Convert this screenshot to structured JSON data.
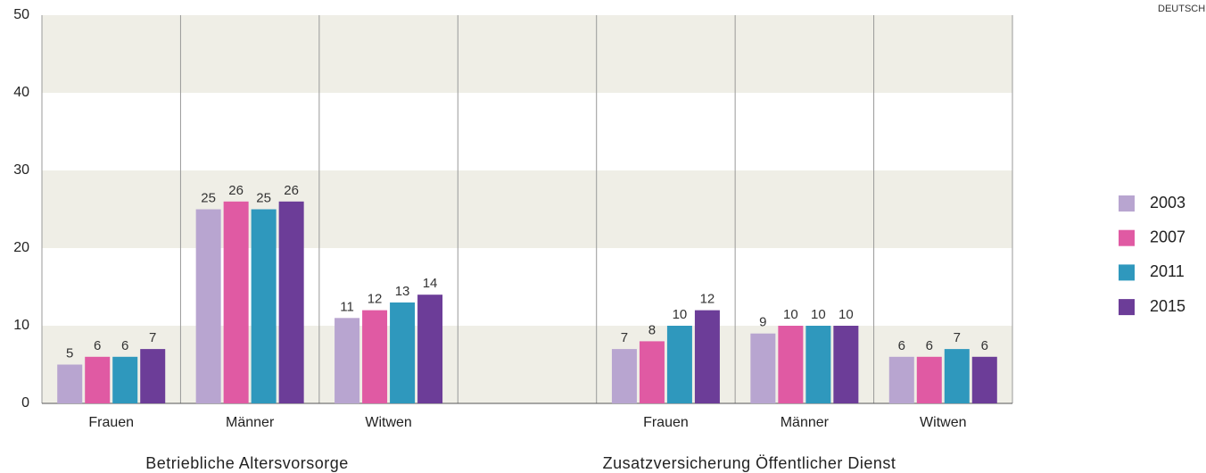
{
  "chart_data": {
    "type": "bar",
    "corner_label": "DEUTSCHLAND",
    "categories": [
      "Frauen",
      "Männer",
      "Witwen",
      null,
      "Frauen",
      "Männer",
      "Witwen"
    ],
    "group_labels": [
      "Betriebliche Altersvorsorge",
      "Zusatzversicherung Öffentlicher Dienst"
    ],
    "series": [
      {
        "name": "2003",
        "color": "#b8a5d0",
        "values": [
          5,
          25,
          11,
          null,
          7,
          9,
          6
        ]
      },
      {
        "name": "2007",
        "color": "#e05aa3",
        "values": [
          6,
          26,
          12,
          null,
          8,
          10,
          6
        ]
      },
      {
        "name": "2011",
        "color": "#2f98bd",
        "values": [
          6,
          25,
          13,
          null,
          10,
          10,
          7
        ]
      },
      {
        "name": "2015",
        "color": "#6c3d98",
        "values": [
          7,
          26,
          14,
          null,
          12,
          10,
          6
        ]
      }
    ],
    "ylim": [
      0,
      50
    ],
    "yticks": [
      0,
      10,
      20,
      30,
      40,
      50
    ],
    "grid": true,
    "legend": "right"
  }
}
